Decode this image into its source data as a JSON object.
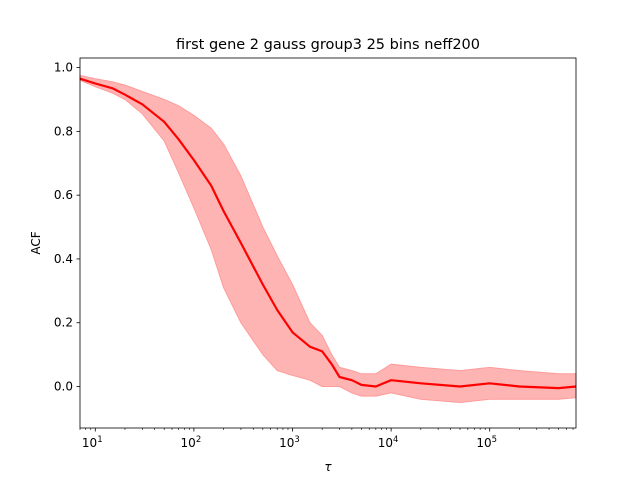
{
  "chart_data": {
    "type": "line",
    "title": "first gene 2 gauss group3 25 bins neff200",
    "xlabel": "τ",
    "ylabel": "ACF",
    "xscale": "log",
    "xlim": [
      7,
      750000
    ],
    "ylim": [
      -0.13,
      1.03
    ],
    "grid": false,
    "legend": "none",
    "colors": {
      "line": "#ff0000",
      "band": "#ff9b9b"
    },
    "xticks": [
      {
        "value": 10,
        "base": "10",
        "exp": "1"
      },
      {
        "value": 100,
        "base": "10",
        "exp": "2"
      },
      {
        "value": 1000,
        "base": "10",
        "exp": "3"
      },
      {
        "value": 10000,
        "base": "10",
        "exp": "4"
      },
      {
        "value": 100000,
        "base": "10",
        "exp": "5"
      }
    ],
    "yticks": [
      {
        "value": 0.0,
        "label": "0.0"
      },
      {
        "value": 0.2,
        "label": "0.2"
      },
      {
        "value": 0.4,
        "label": "0.4"
      },
      {
        "value": 0.6,
        "label": "0.6"
      },
      {
        "value": 0.8,
        "label": "0.8"
      },
      {
        "value": 1.0,
        "label": "1.0"
      }
    ],
    "series": [
      {
        "x": [
          7,
          10,
          15,
          20,
          30,
          50,
          70,
          100,
          150,
          200,
          300,
          500,
          700,
          1000,
          1500,
          2000,
          2500,
          3000,
          4000,
          5000,
          7000,
          10000,
          20000,
          50000,
          100000,
          200000,
          500000,
          750000
        ],
        "y": [
          0.965,
          0.95,
          0.935,
          0.915,
          0.885,
          0.83,
          0.775,
          0.71,
          0.63,
          0.55,
          0.45,
          0.32,
          0.24,
          0.17,
          0.125,
          0.11,
          0.07,
          0.03,
          0.02,
          0.005,
          0.0,
          0.02,
          0.01,
          0.0,
          0.01,
          0.0,
          -0.005,
          0.0
        ],
        "lower": [
          0.96,
          0.94,
          0.92,
          0.9,
          0.855,
          0.77,
          0.67,
          0.56,
          0.43,
          0.31,
          0.2,
          0.1,
          0.05,
          0.035,
          0.02,
          0.0,
          0.0,
          0.0,
          -0.02,
          -0.03,
          -0.03,
          -0.02,
          -0.04,
          -0.05,
          -0.04,
          -0.04,
          -0.04,
          -0.035
        ],
        "upper": [
          0.975,
          0.965,
          0.955,
          0.945,
          0.925,
          0.9,
          0.88,
          0.85,
          0.81,
          0.76,
          0.66,
          0.5,
          0.41,
          0.32,
          0.2,
          0.16,
          0.1,
          0.06,
          0.05,
          0.04,
          0.04,
          0.07,
          0.06,
          0.05,
          0.06,
          0.05,
          0.04,
          0.04
        ]
      }
    ]
  }
}
